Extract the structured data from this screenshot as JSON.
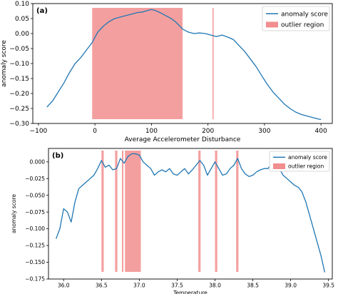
{
  "chart_data": [
    {
      "type": "line",
      "panel_label": "(a)",
      "xlabel": "Average Accelerometer Disturbance",
      "ylabel": "anomaly score",
      "xlim": [
        -110,
        420
      ],
      "ylim": [
        -0.3,
        0.1
      ],
      "x_ticks": [
        -100,
        0,
        100,
        200,
        300,
        400
      ],
      "y_ticks": [
        -0.3,
        -0.25,
        -0.2,
        -0.15,
        -0.1,
        -0.05,
        0.0,
        0.05,
        0.1
      ],
      "x_tick_labels": [
        "−100",
        "0",
        "100",
        "200",
        "300",
        "400"
      ],
      "y_tick_labels": [
        "−0.30",
        "−0.25",
        "−0.20",
        "−0.15",
        "−0.10",
        "−0.05",
        "0.00",
        "0.05",
        "0.10"
      ],
      "grid": false,
      "legend_position": "upper right",
      "series": [
        {
          "name": "anomaly score",
          "color": "#1f77b4",
          "x": [
            -85,
            -75,
            -65,
            -55,
            -45,
            -35,
            -25,
            -15,
            -5,
            5,
            15,
            25,
            35,
            45,
            55,
            65,
            75,
            85,
            95,
            100,
            105,
            115,
            125,
            135,
            145,
            155,
            165,
            175,
            185,
            195,
            205,
            215,
            225,
            235,
            245,
            255,
            265,
            275,
            285,
            295,
            305,
            315,
            325,
            335,
            345,
            355,
            365,
            375,
            385,
            395,
            400
          ],
          "y": [
            -0.245,
            -0.225,
            -0.195,
            -0.165,
            -0.13,
            -0.1,
            -0.08,
            -0.055,
            -0.03,
            0.005,
            0.025,
            0.04,
            0.05,
            0.055,
            0.06,
            0.065,
            0.07,
            0.072,
            0.078,
            0.08,
            0.078,
            0.07,
            0.06,
            0.05,
            0.035,
            0.015,
            0.005,
            0.0,
            0.002,
            0.0,
            -0.005,
            -0.01,
            -0.005,
            -0.012,
            -0.02,
            -0.04,
            -0.06,
            -0.085,
            -0.11,
            -0.14,
            -0.17,
            -0.195,
            -0.215,
            -0.235,
            -0.25,
            -0.262,
            -0.27,
            -0.275,
            -0.28,
            -0.285,
            -0.287
          ]
        }
      ],
      "outlier_regions": [
        [
          -5,
          155
        ],
        [
          208,
          210
        ]
      ],
      "region_legend": "outlier region",
      "region_color": "#f28e8e"
    },
    {
      "type": "line",
      "panel_label": "(b)",
      "xlabel": "Temperature",
      "ylabel": "anomaly score",
      "xlim": [
        35.8,
        39.55
      ],
      "ylim": [
        -0.175,
        0.02
      ],
      "x_ticks": [
        36.0,
        36.5,
        37.0,
        37.5,
        38.0,
        38.5,
        39.0,
        39.5
      ],
      "y_ticks": [
        -0.175,
        -0.15,
        -0.125,
        -0.1,
        -0.075,
        -0.05,
        -0.025,
        0.0
      ],
      "x_tick_labels": [
        "36.0",
        "36.5",
        "37.0",
        "37.5",
        "38.0",
        "38.5",
        "39.0",
        "39.5"
      ],
      "y_tick_labels": [
        "−0.175",
        "−0.150",
        "−0.125",
        "−0.100",
        "−0.075",
        "−0.050",
        "−0.025",
        "0.000"
      ],
      "grid": false,
      "legend_position": "upper right",
      "series": [
        {
          "name": "anomaly score",
          "color": "#1f77b4",
          "x": [
            35.9,
            35.95,
            36.0,
            36.05,
            36.1,
            36.15,
            36.2,
            36.25,
            36.3,
            36.35,
            36.4,
            36.45,
            36.5,
            36.55,
            36.6,
            36.65,
            36.7,
            36.75,
            36.8,
            36.85,
            36.9,
            36.95,
            37.0,
            37.05,
            37.1,
            37.15,
            37.2,
            37.25,
            37.3,
            37.35,
            37.4,
            37.45,
            37.5,
            37.55,
            37.6,
            37.65,
            37.7,
            37.75,
            37.8,
            37.85,
            37.9,
            37.95,
            38.0,
            38.05,
            38.1,
            38.15,
            38.2,
            38.25,
            38.3,
            38.35,
            38.4,
            38.45,
            38.5,
            38.55,
            38.6,
            38.65,
            38.7,
            38.75,
            38.8,
            38.85,
            38.9,
            38.95,
            39.0,
            39.05,
            39.1,
            39.15,
            39.2,
            39.25,
            39.3,
            39.35,
            39.4,
            39.45
          ],
          "y": [
            -0.115,
            -0.1,
            -0.07,
            -0.075,
            -0.09,
            -0.06,
            -0.04,
            -0.035,
            -0.03,
            -0.025,
            -0.02,
            -0.01,
            0.002,
            -0.008,
            -0.005,
            -0.012,
            -0.01,
            0.005,
            -0.002,
            0.008,
            0.012,
            0.012,
            0.01,
            0.0,
            -0.005,
            -0.01,
            -0.02,
            -0.015,
            -0.012,
            -0.015,
            -0.01,
            -0.018,
            -0.02,
            -0.015,
            -0.01,
            -0.018,
            -0.012,
            -0.005,
            0.002,
            -0.005,
            -0.02,
            -0.01,
            0.0,
            -0.01,
            -0.02,
            -0.018,
            -0.01,
            -0.005,
            0.005,
            -0.01,
            -0.018,
            -0.022,
            -0.02,
            -0.015,
            -0.012,
            -0.01,
            -0.01,
            -0.003,
            0.005,
            -0.01,
            -0.02,
            -0.025,
            -0.03,
            -0.035,
            -0.038,
            -0.045,
            -0.06,
            -0.08,
            -0.1,
            -0.12,
            -0.14,
            -0.165
          ]
        }
      ],
      "outlier_regions": [
        [
          36.5,
          36.53
        ],
        [
          36.68,
          36.71
        ],
        [
          36.77,
          36.79
        ],
        [
          36.81,
          37.02
        ],
        [
          37.78,
          37.81
        ],
        [
          38.0,
          38.03
        ],
        [
          38.28,
          38.31
        ]
      ],
      "region_legend": "outlier region",
      "region_color": "#f28e8e"
    }
  ]
}
